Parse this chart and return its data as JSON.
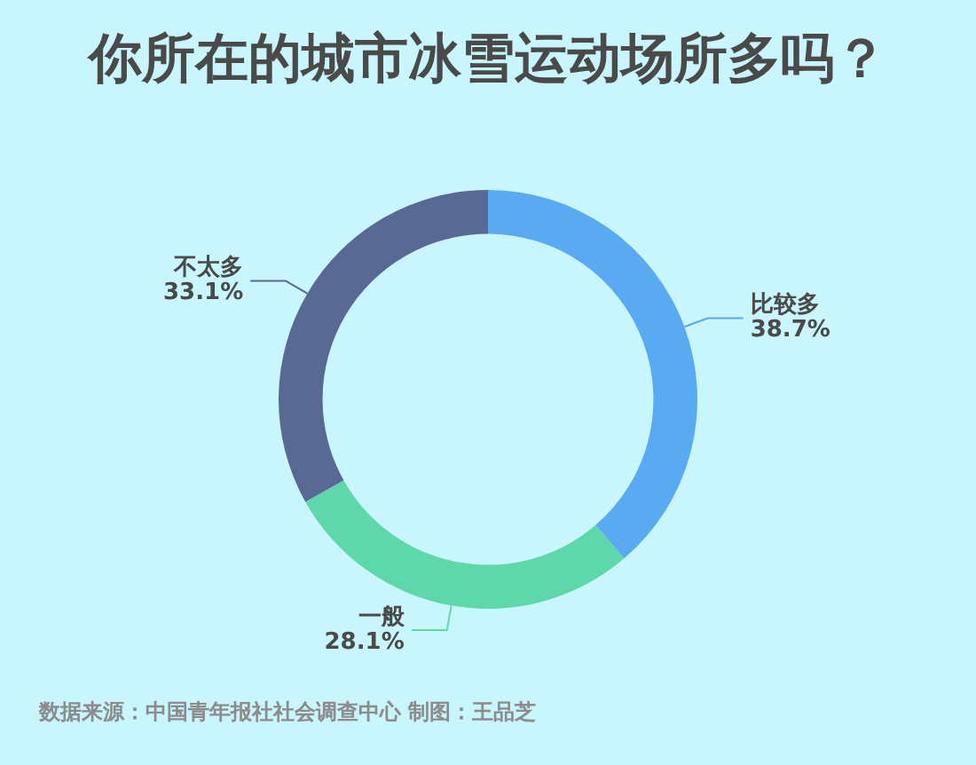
{
  "chart_data": {
    "type": "donut",
    "title": "你所在的城市冰雪运动场所多吗？",
    "categories": [
      "比较多",
      "一般",
      "不太多"
    ],
    "values": [
      38.7,
      28.1,
      33.1
    ],
    "value_labels": [
      "38.7%",
      "28.1%",
      "33.1%"
    ],
    "colors": [
      "#5aaaf2",
      "#5ed8aa",
      "#586a94"
    ],
    "annotations": [
      "数据来源：中国青年报社社会调查中心 制图：王品芝"
    ]
  }
}
